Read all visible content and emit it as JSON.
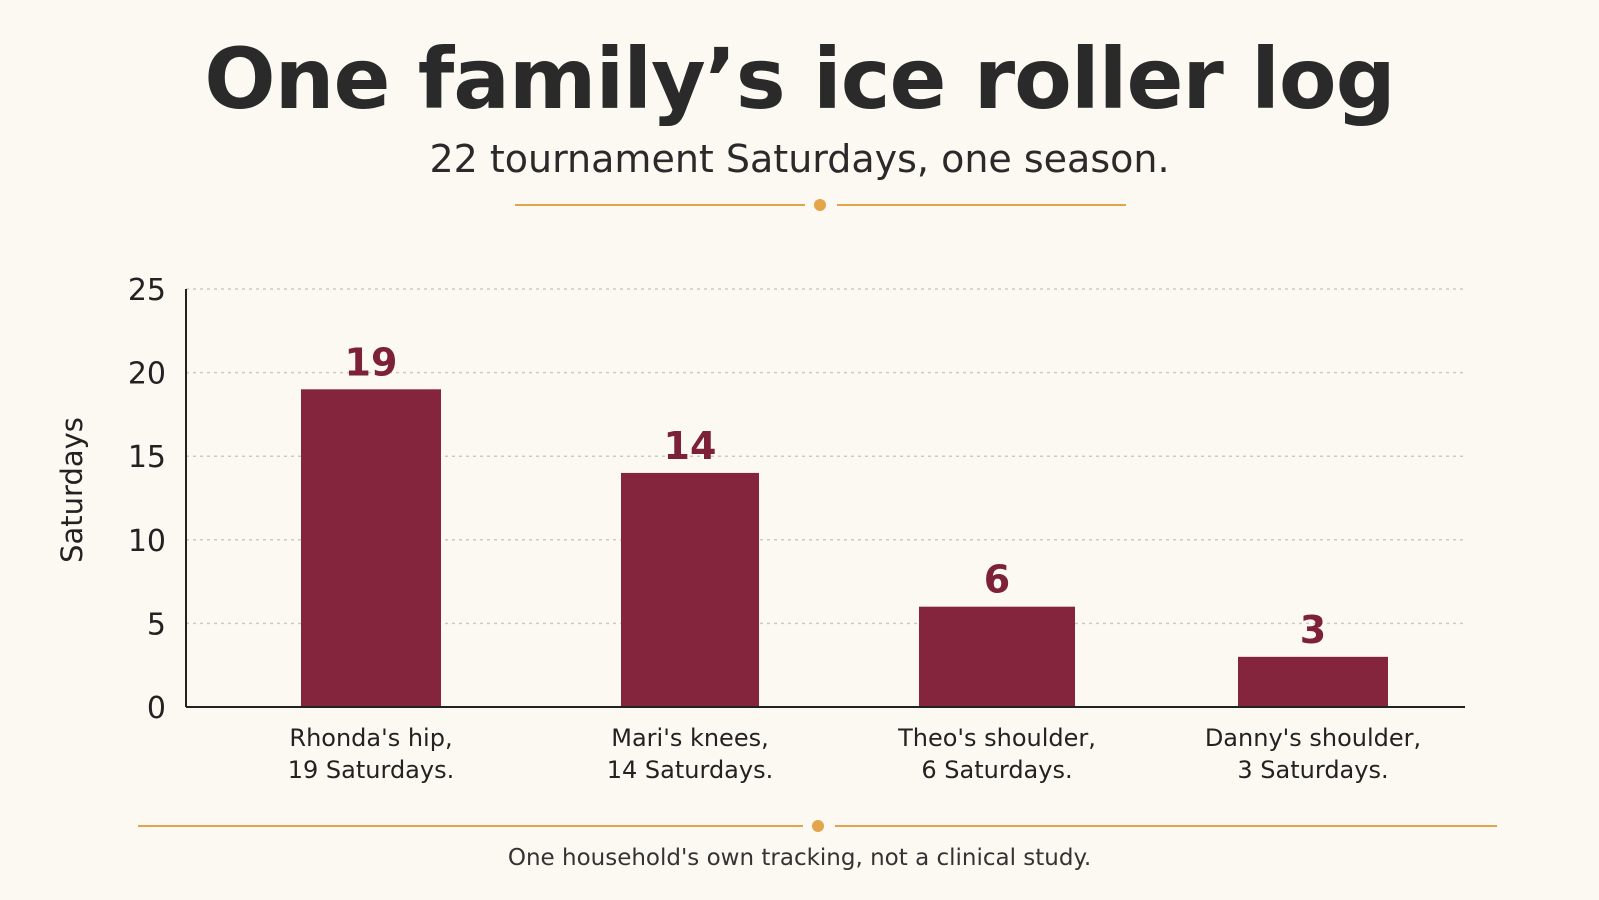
{
  "header": {
    "title": "One family’s ice roller log",
    "subtitle": "22 tournament Saturdays, one season."
  },
  "footer": {
    "note": "One household's own tracking, not a clinical study."
  },
  "colors": {
    "bar": "#84253d",
    "accent": "#e3a44a",
    "grid": "#cfcac0",
    "axis": "#222222"
  },
  "chart_data": {
    "type": "bar",
    "categories": [
      "Rhonda's hip",
      "Mari's knees",
      "Theo's shoulder",
      "Danny's shoulder"
    ],
    "category_labels": [
      [
        "Rhonda's hip,",
        "19 Saturdays."
      ],
      [
        "Mari's knees,",
        "14 Saturdays."
      ],
      [
        "Theo's shoulder,",
        "6 Saturdays."
      ],
      [
        "Danny's shoulder,",
        "3 Saturdays."
      ]
    ],
    "values": [
      19,
      14,
      6,
      3
    ],
    "ylabel": "Saturdays",
    "ylim": [
      0,
      25
    ],
    "yticks": [
      0,
      5,
      10,
      15,
      20,
      25
    ],
    "grid": true
  }
}
